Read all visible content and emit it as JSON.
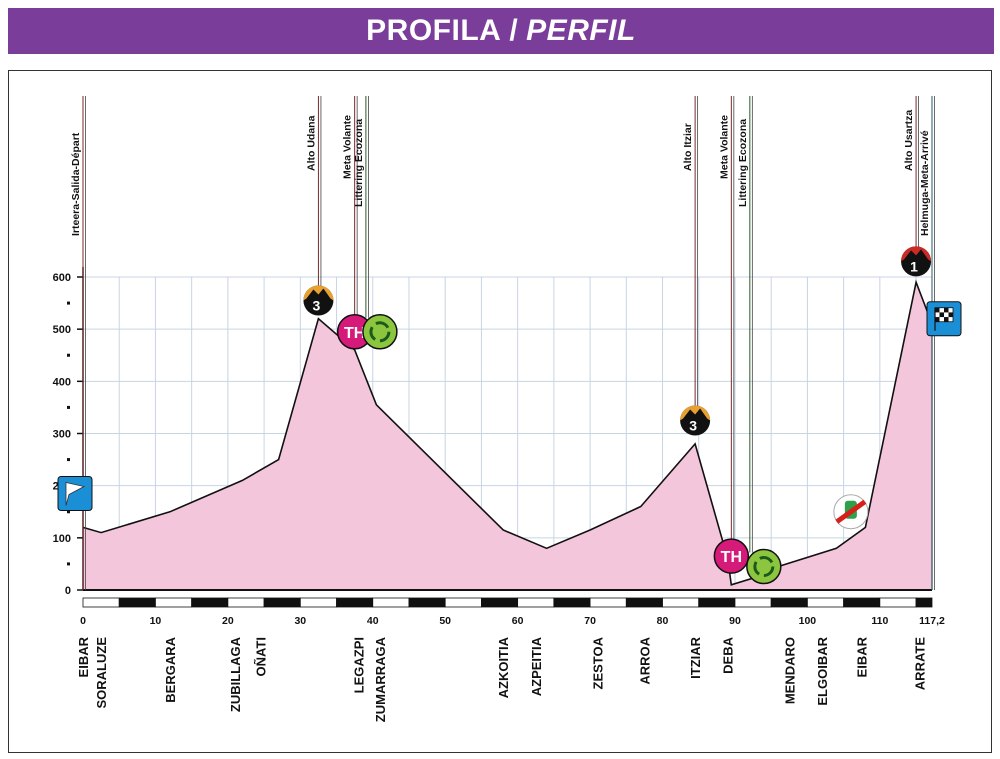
{
  "header": {
    "title_main": "PROFILA",
    "separator": "/",
    "title_alt": "PERFIL"
  },
  "colors": {
    "banner": "#7a3d9a",
    "profile_fill": "#f4c6dc",
    "grid": "#c8d4e4"
  },
  "chart_data": {
    "type": "area",
    "title": "PROFILA / PERFIL",
    "xlabel": "",
    "ylabel": "",
    "xlim": [
      0,
      117.2
    ],
    "ylim": [
      0,
      600
    ],
    "grid": true,
    "x_ticks": [
      "0",
      "10",
      "20",
      "30",
      "40",
      "50",
      "60",
      "70",
      "80",
      "90",
      "100",
      "110",
      "117,2"
    ],
    "y_ticks": [
      "0",
      "100",
      "200",
      "300",
      "400",
      "500",
      "600"
    ],
    "profile": {
      "x": [
        0,
        2.5,
        12,
        22,
        27,
        32.5,
        37.5,
        40.5,
        58,
        64,
        70,
        77,
        84.5,
        89,
        89.5,
        93,
        96,
        104,
        108,
        115,
        117.2
      ],
      "y": [
        120,
        110,
        150,
        210,
        250,
        520,
        460,
        355,
        115,
        80,
        115,
        160,
        280,
        60,
        10,
        25,
        45,
        80,
        120,
        590,
        510
      ]
    },
    "markers": [
      {
        "km": 0,
        "label": "Irteera-Salida-Départ",
        "type": "start",
        "flag_elevation": 185
      },
      {
        "km": 32.5,
        "label": "Alto Udana",
        "type": "climb",
        "category": "3",
        "icon_elevation": 555
      },
      {
        "km": 37.5,
        "label": "Meta Volante",
        "type": "sprint",
        "text": "TH",
        "icon_elevation": 495
      },
      {
        "km": 38.5,
        "label": "Littering Ecozona",
        "type": "eco",
        "icon_elevation": 495
      },
      {
        "km": 84.5,
        "label": "Alto Itziar",
        "type": "climb",
        "category": "3",
        "icon_elevation": 325
      },
      {
        "km": 89.5,
        "label": "Meta Volante",
        "type": "sprint",
        "text": "TH",
        "icon_elevation": 65
      },
      {
        "km": 91.5,
        "label": "Littering Ecozona",
        "type": "eco",
        "icon_elevation": 45
      },
      {
        "km": 115,
        "label": "Alto Usartza",
        "type": "climb",
        "category": "1",
        "icon_elevation": 630
      },
      {
        "km": 117.2,
        "label": "Helmuga-Meta-Arrivé",
        "type": "finish",
        "flag_elevation": 520
      }
    ],
    "feed_zone": {
      "km": 106,
      "elevation": 150
    },
    "towns": [
      {
        "name": "EIBAR",
        "km": 0
      },
      {
        "name": "SORALUZE",
        "km": 2.5
      },
      {
        "name": "BERGARA",
        "km": 12
      },
      {
        "name": "ZUBILLAGA",
        "km": 21
      },
      {
        "name": "OÑATI",
        "km": 24.5
      },
      {
        "name": "LEGAZPI",
        "km": 38
      },
      {
        "name": "ZUMARRAGA",
        "km": 41
      },
      {
        "name": "AZKOITIA",
        "km": 58
      },
      {
        "name": "AZPEITIA",
        "km": 62.5
      },
      {
        "name": "ZESTOA",
        "km": 71
      },
      {
        "name": "ARROA",
        "km": 77.5
      },
      {
        "name": "ITZIAR",
        "km": 84.5
      },
      {
        "name": "DEBA",
        "km": 89
      },
      {
        "name": "MENDARO",
        "km": 97.5
      },
      {
        "name": "ELGOIBAR",
        "km": 102
      },
      {
        "name": "EIBAR",
        "km": 107.5
      },
      {
        "name": "ARRATE",
        "km": 115.5
      }
    ]
  }
}
